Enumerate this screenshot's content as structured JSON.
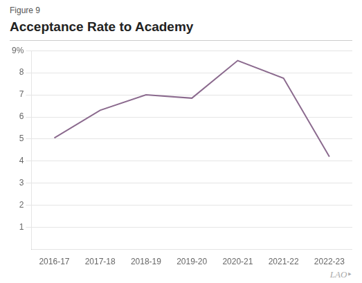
{
  "chart_data": {
    "type": "line",
    "title": "Acceptance Rate to Academy",
    "subtitle": "Figure 9",
    "categories": [
      "2016-17",
      "2017-18",
      "2018-19",
      "2019-20",
      "2020-21",
      "2021-22",
      "2022-23"
    ],
    "values": [
      5.05,
      6.3,
      7.0,
      6.85,
      8.55,
      7.75,
      4.2
    ],
    "color": "#8B6A8E",
    "ylim": [
      0,
      9
    ],
    "yticks": [
      1,
      2,
      3,
      4,
      5,
      6,
      7,
      8,
      {
        "value": 9,
        "label": "9%"
      }
    ],
    "grid": true,
    "annotations": [
      "LAO‣"
    ]
  }
}
